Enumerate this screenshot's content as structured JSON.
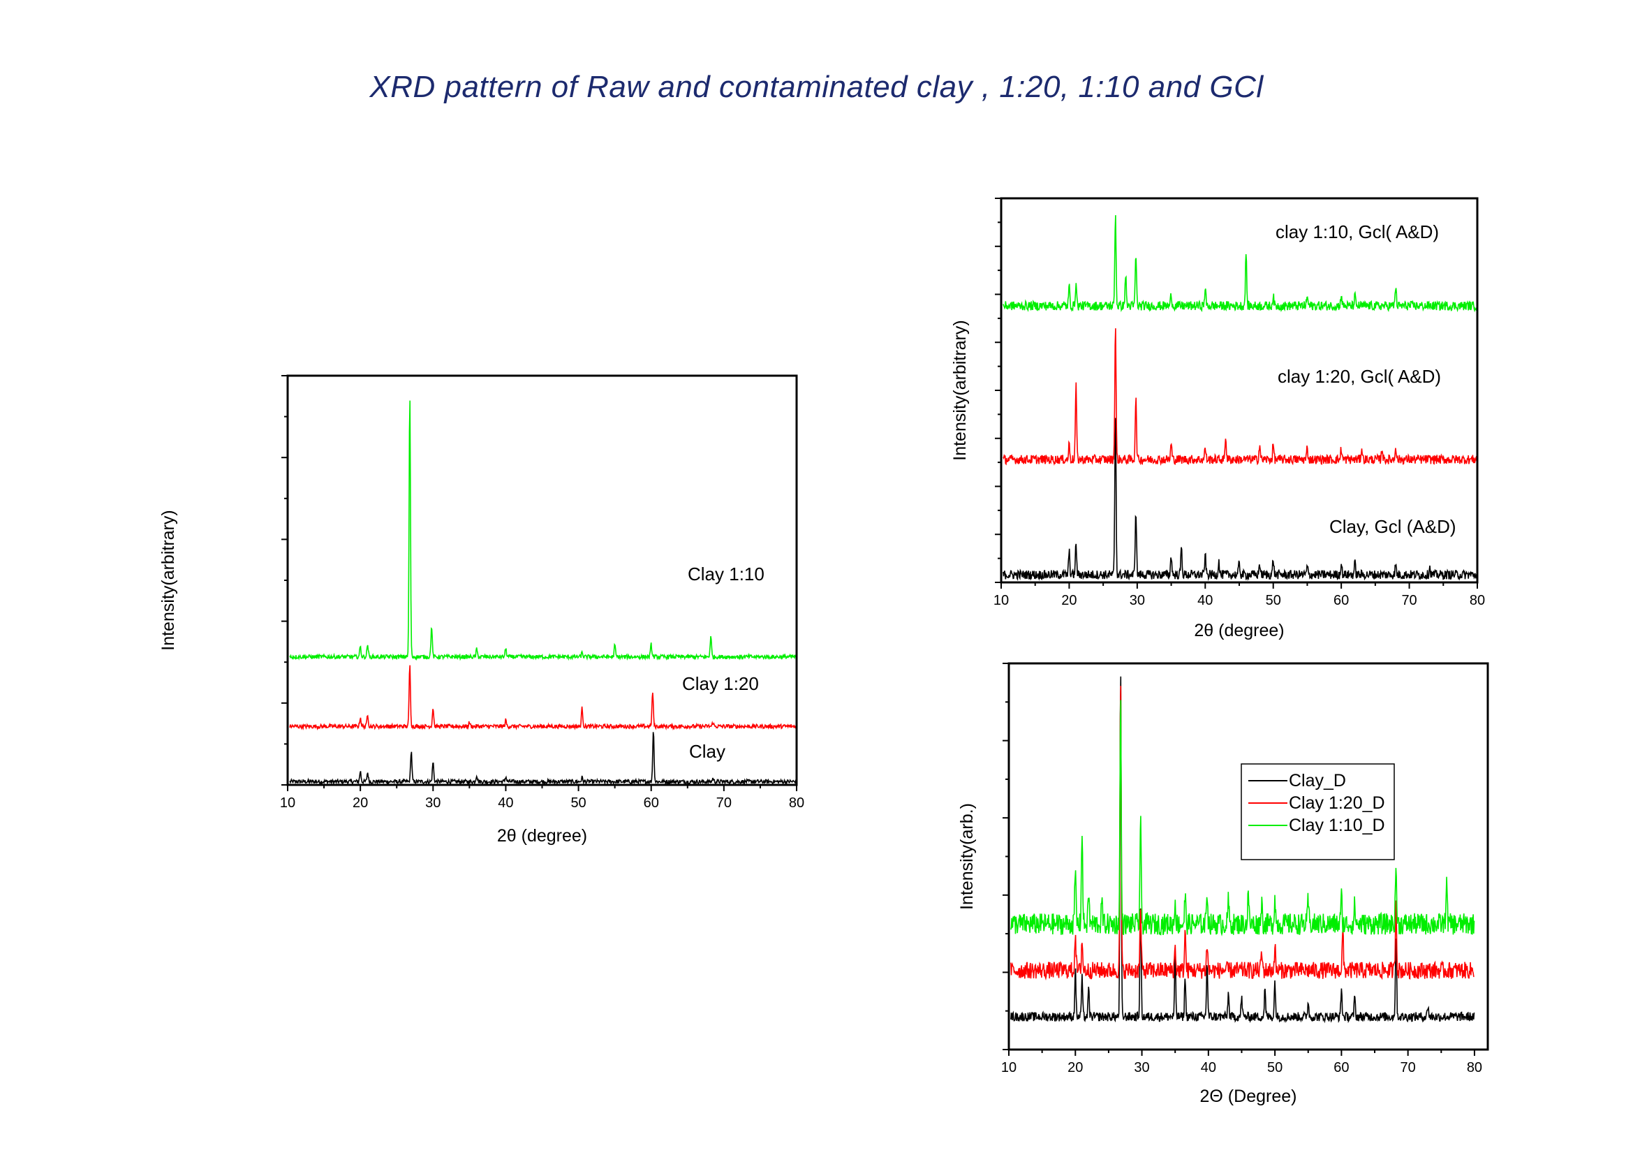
{
  "title": "XRD  pattern of  Raw and contaminated clay , 1:20, 1:10 and GCl",
  "colors": {
    "black": "#000000",
    "red": "#ff0000",
    "green": "#00ee00",
    "title": "#1c2a6e"
  },
  "chart_data": [
    {
      "type": "line",
      "xlabel": "2θ (degree)",
      "ylabel": "Intensity(arbitrary)",
      "xlim": [
        10,
        80
      ],
      "xticks": [
        "10",
        "20",
        "30",
        "40",
        "50",
        "60",
        "70",
        "80"
      ],
      "ylim": [
        0,
        100
      ],
      "legend": "inline",
      "series": [
        {
          "name": "Clay",
          "color": "#000000",
          "offset": 0,
          "baseline": 0.8,
          "noise": 0.5,
          "peaks": [
            [
              20.0,
              2.5
            ],
            [
              21.0,
              2.2
            ],
            [
              27.0,
              7.5
            ],
            [
              30.0,
              4.8
            ],
            [
              36.0,
              1.6
            ],
            [
              40.0,
              1.2
            ],
            [
              50.5,
              1.0
            ],
            [
              60.3,
              12.5
            ],
            [
              68.5,
              0.8
            ]
          ]
        },
        {
          "name": "Clay 1:20",
          "color": "#ff0000",
          "offset": 13.5,
          "baseline": 0.8,
          "noise": 0.5,
          "peaks": [
            [
              20.0,
              2.2
            ],
            [
              21.0,
              3.0
            ],
            [
              26.8,
              15.0
            ],
            [
              30.0,
              4.5
            ],
            [
              35.0,
              1.0
            ],
            [
              40.0,
              1.5
            ],
            [
              50.5,
              4.5
            ],
            [
              60.2,
              8.5
            ],
            [
              68.5,
              1.0
            ]
          ]
        },
        {
          "name": "Clay 1:10",
          "color": "#00ee00",
          "offset": 30.5,
          "baseline": 0.8,
          "noise": 0.5,
          "peaks": [
            [
              20.0,
              2.5
            ],
            [
              21.0,
              3.0
            ],
            [
              26.8,
              64.0
            ],
            [
              29.8,
              7.5
            ],
            [
              36.0,
              1.8
            ],
            [
              40.0,
              2.0
            ],
            [
              50.5,
              1.0
            ],
            [
              55.0,
              2.8
            ],
            [
              60.0,
              3.0
            ],
            [
              68.2,
              5.0
            ]
          ]
        }
      ]
    },
    {
      "type": "line",
      "xlabel": "2θ (degree)",
      "ylabel": "Intensity(arbitrary)",
      "xlim": [
        10,
        80
      ],
      "xticks": [
        "10",
        "20",
        "30",
        "40",
        "50",
        "60",
        "70",
        "80"
      ],
      "ylim": [
        0,
        100
      ],
      "legend": "inline",
      "series": [
        {
          "name": "Clay, Gcl (A&D)",
          "color": "#000000",
          "offset": 0,
          "baseline": 2.0,
          "noise": 1.2,
          "peaks": [
            [
              20.0,
              6.0
            ],
            [
              21.0,
              8.0
            ],
            [
              26.8,
              42.0
            ],
            [
              29.8,
              17.0
            ],
            [
              35.0,
              5.0
            ],
            [
              36.5,
              7.0
            ],
            [
              40.0,
              5.0
            ],
            [
              42.0,
              3.5
            ],
            [
              45.0,
              3.0
            ],
            [
              48.0,
              3.0
            ],
            [
              50.0,
              4.0
            ],
            [
              55.0,
              2.0
            ],
            [
              60.0,
              3.0
            ],
            [
              62.0,
              3.0
            ],
            [
              68.0,
              2.5
            ],
            [
              73.0,
              2.0
            ]
          ]
        },
        {
          "name": "clay 1:20, Gcl( A&D)",
          "color": "#ff0000",
          "offset": 30.5,
          "baseline": 1.5,
          "noise": 1.2,
          "peaks": [
            [
              20.0,
              4.0
            ],
            [
              21.0,
              19.0
            ],
            [
              26.8,
              34.5
            ],
            [
              29.8,
              16.0
            ],
            [
              35.0,
              4.0
            ],
            [
              40.0,
              3.0
            ],
            [
              43.0,
              6.0
            ],
            [
              48.0,
              4.0
            ],
            [
              50.0,
              4.0
            ],
            [
              55.0,
              3.0
            ],
            [
              60.0,
              3.0
            ],
            [
              63.0,
              3.0
            ],
            [
              66.0,
              3.0
            ],
            [
              68.0,
              3.5
            ]
          ]
        },
        {
          "name": "clay 1:10, Gcl( A&D)",
          "color": "#00ee00",
          "offset": 70.5,
          "baseline": 1.5,
          "noise": 1.2,
          "peaks": [
            [
              20.0,
              5.0
            ],
            [
              21.0,
              6.0
            ],
            [
              26.8,
              24.0
            ],
            [
              28.3,
              8.0
            ],
            [
              29.8,
              13.5
            ],
            [
              35.0,
              3.0
            ],
            [
              40.0,
              4.5
            ],
            [
              46.0,
              14.0
            ],
            [
              50.0,
              2.5
            ],
            [
              55.0,
              2.5
            ],
            [
              60.0,
              3.0
            ],
            [
              62.0,
              2.5
            ],
            [
              68.0,
              5.0
            ]
          ]
        }
      ]
    },
    {
      "type": "line",
      "xlabel": "2Θ (Degree)",
      "ylabel": "Intensity(arb.)",
      "xlim": [
        10,
        82
      ],
      "xticks": [
        "10",
        "20",
        "30",
        "40",
        "50",
        "60",
        "70",
        "80"
      ],
      "ylim": [
        0,
        100
      ],
      "legend": "top-center",
      "series": [
        {
          "name": "Clay_D",
          "color": "#000000",
          "offset": 8.5,
          "baseline": 0.0,
          "noise": 1.2,
          "peaks": [
            [
              20.0,
              12.0
            ],
            [
              21.0,
              10.0
            ],
            [
              22.0,
              7.0
            ],
            [
              26.8,
              90.0
            ],
            [
              29.8,
              30.0
            ],
            [
              35.0,
              15.0
            ],
            [
              36.5,
              10.0
            ],
            [
              39.8,
              14.0
            ],
            [
              43.0,
              6.0
            ],
            [
              45.0,
              5.0
            ],
            [
              48.5,
              7.0
            ],
            [
              50.0,
              9.0
            ],
            [
              55.0,
              4.0
            ],
            [
              60.0,
              7.0
            ],
            [
              62.0,
              5.0
            ],
            [
              68.2,
              21.0
            ],
            [
              73.0,
              3.0
            ]
          ]
        },
        {
          "name": "Clay 1:20_D",
          "color": "#ff0000",
          "offset": 20.5,
          "baseline": 0.0,
          "noise": 2.2,
          "peaks": [
            [
              20.0,
              10.0
            ],
            [
              21.0,
              8.0
            ],
            [
              26.8,
              75.0
            ],
            [
              29.8,
              16.0
            ],
            [
              35.0,
              6.0
            ],
            [
              36.5,
              10.0
            ],
            [
              39.8,
              7.0
            ],
            [
              48.0,
              5.0
            ],
            [
              50.0,
              6.0
            ],
            [
              60.2,
              10.0
            ],
            [
              68.2,
              18.0
            ]
          ]
        },
        {
          "name": "Clay 1:10_D",
          "color": "#00ee00",
          "offset": 32.5,
          "baseline": 0.0,
          "noise": 2.8,
          "peaks": [
            [
              20.0,
              14.0
            ],
            [
              21.0,
              25.0
            ],
            [
              22.0,
              8.0
            ],
            [
              24.0,
              6.0
            ],
            [
              26.8,
              58.0
            ],
            [
              29.8,
              27.0
            ],
            [
              35.0,
              6.0
            ],
            [
              36.5,
              7.0
            ],
            [
              39.8,
              9.0
            ],
            [
              43.0,
              6.0
            ],
            [
              46.0,
              8.0
            ],
            [
              48.0,
              6.0
            ],
            [
              50.0,
              7.0
            ],
            [
              55.0,
              6.0
            ],
            [
              60.0,
              7.0
            ],
            [
              62.0,
              5.0
            ],
            [
              68.2,
              15.0
            ],
            [
              75.8,
              12.0
            ]
          ]
        }
      ]
    }
  ]
}
